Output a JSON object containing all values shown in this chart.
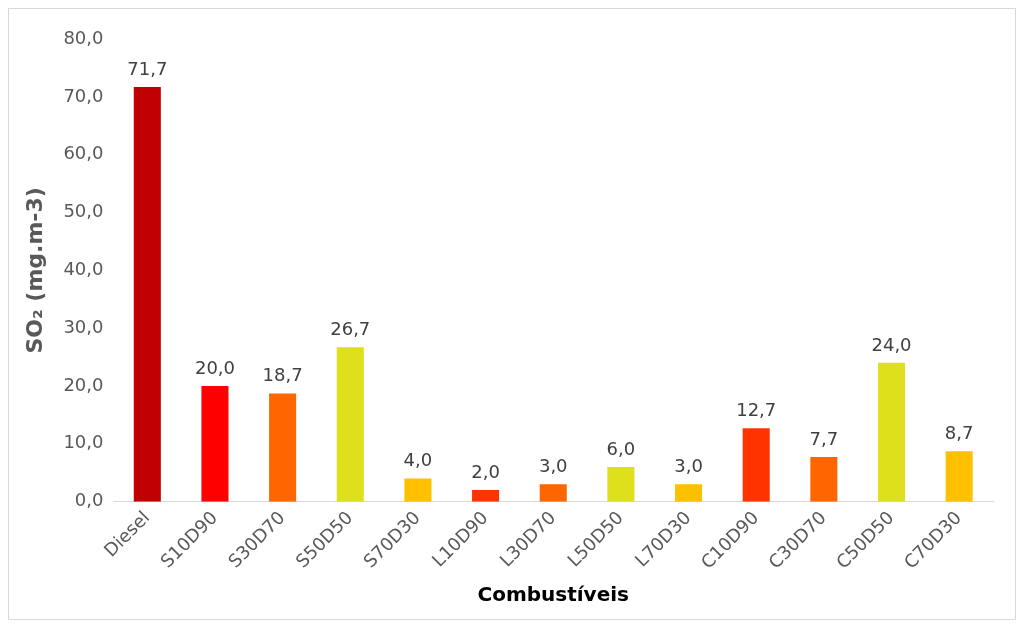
{
  "chart_data": {
    "type": "bar",
    "xlabel": "Combustíveis",
    "ylabel": "SO₂ (mg.m-3)",
    "categories": [
      "Diesel",
      "S10D90",
      "S30D70",
      "S50D50",
      "S70D30",
      "L10D90",
      "L30D70",
      "L50D50",
      "L70D30",
      "C10D90",
      "C30D70",
      "C50D50",
      "C70D30"
    ],
    "values": [
      71.7,
      20.0,
      18.7,
      26.7,
      4.0,
      2.0,
      3.0,
      6.0,
      3.0,
      12.7,
      7.7,
      24.0,
      8.7
    ],
    "colors": [
      "#c00000",
      "#ff0000",
      "#ff6600",
      "#dde01a",
      "#ffc000",
      "#ff3300",
      "#ff6600",
      "#dde01a",
      "#ffc000",
      "#ff3300",
      "#ff6600",
      "#dde01a",
      "#ffc000"
    ],
    "value_labels": [
      "71,7",
      "20,0",
      "18,7",
      "26,7",
      "4,0",
      "2,0",
      "3,0",
      "6,0",
      "3,0",
      "12,7",
      "7,7",
      "24,0",
      "8,7"
    ],
    "ylim": [
      0,
      80
    ],
    "yticks": [
      {
        "value": 0,
        "label": "0,0"
      },
      {
        "value": 10,
        "label": "10,0"
      },
      {
        "value": 20,
        "label": "20,0"
      },
      {
        "value": 30,
        "label": "30,0"
      },
      {
        "value": 40,
        "label": "40,0"
      },
      {
        "value": 50,
        "label": "50,0"
      },
      {
        "value": 60,
        "label": "60,0"
      },
      {
        "value": 70,
        "label": "70,0"
      },
      {
        "value": 80,
        "label": "80,0"
      }
    ],
    "grid": false,
    "legend": false
  }
}
